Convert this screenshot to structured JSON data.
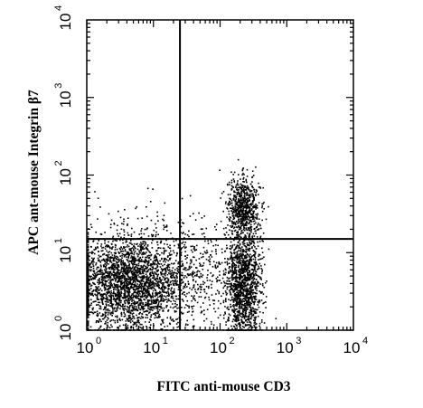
{
  "chart_data": {
    "type": "scatter",
    "title": "",
    "xlabel": "FITC anti-mouse CD3",
    "ylabel": "APC ant-mouse Integrin β7",
    "xscale": "log",
    "yscale": "log",
    "xlim": [
      1,
      10000
    ],
    "ylim": [
      1,
      10000
    ],
    "x_ticks": [
      {
        "base": "10",
        "exp": "0"
      },
      {
        "base": "10",
        "exp": "1"
      },
      {
        "base": "10",
        "exp": "2"
      },
      {
        "base": "10",
        "exp": "3"
      },
      {
        "base": "10",
        "exp": "4"
      }
    ],
    "y_ticks": [
      {
        "base": "10",
        "exp": "0"
      },
      {
        "base": "10",
        "exp": "1"
      },
      {
        "base": "10",
        "exp": "2"
      },
      {
        "base": "10",
        "exp": "3"
      },
      {
        "base": "10",
        "exp": "4"
      }
    ],
    "quadrant_gates": {
      "x": 25,
      "y": 15
    },
    "grid": false,
    "legend": "none",
    "marker_color": "#000000",
    "populations": [
      {
        "population": "CD3- Integrin b7 low",
        "center_x": 4,
        "center_y": 4,
        "spread_x_decades": 0.42,
        "spread_y_decades": 0.3,
        "approx_events": 2600
      },
      {
        "population": "CD3+ Integrin b7 low",
        "center_x": 220,
        "center_y": 4,
        "spread_x_decades": 0.13,
        "spread_y_decades": 0.33,
        "approx_events": 1400
      },
      {
        "population": "CD3+ Integrin b7 high",
        "center_x": 220,
        "center_y": 38,
        "spread_x_decades": 0.12,
        "spread_y_decades": 0.2,
        "approx_events": 700
      },
      {
        "population": "intermediate scatter",
        "center_x": 30,
        "center_y": 5,
        "spread_x_decades": 0.4,
        "spread_y_decades": 0.35,
        "approx_events": 500
      },
      {
        "population": "sparse outliers",
        "center_x": 8,
        "center_y": 13,
        "spread_x_decades": 0.5,
        "spread_y_decades": 0.35,
        "approx_events": 120
      }
    ]
  }
}
